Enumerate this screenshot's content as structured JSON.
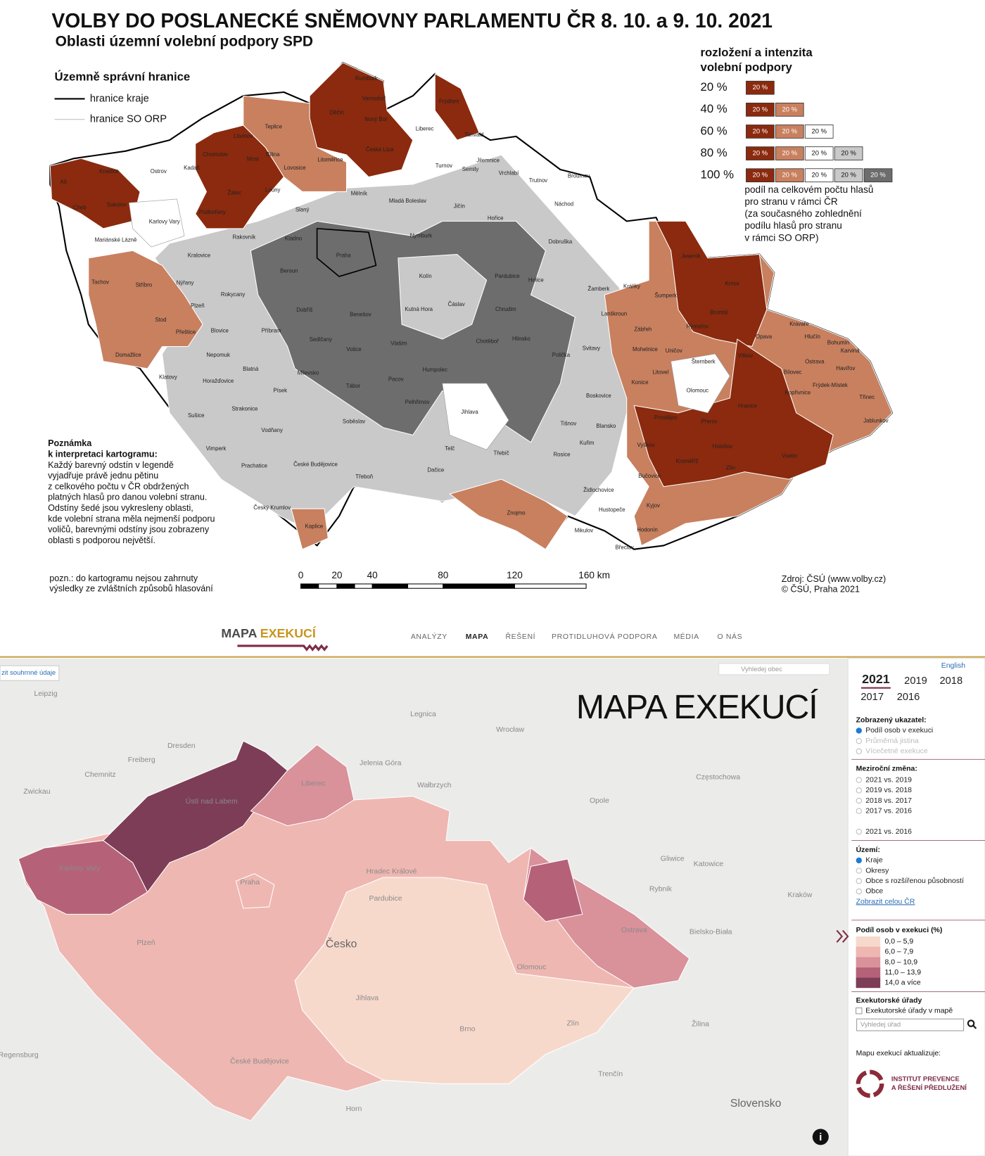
{
  "top": {
    "title": "VOLBY DO POSLANECKÉ SNĚMOVNY PARLAMENTU ČR 8. 10. a 9. 10. 2021",
    "subtitle": "Oblasti územní volební podpory SPD",
    "boundaries": {
      "title": "Územně správní hranice",
      "items": [
        "hranice kraje",
        "hranice SO ORP"
      ]
    },
    "legend": {
      "title_lines": [
        "rozložení a intenzita",
        "volební podpory"
      ],
      "rows": [
        "20 %",
        "40 %",
        "60 %",
        "80 %",
        "100 %"
      ],
      "cell": "20 %",
      "colors": [
        "#8b2a0e",
        "#c8805f",
        "#ffffff",
        "#c9c9c9",
        "#6d6d6d"
      ],
      "note_lines": [
        "podíl na celkovém počtu hlasů",
        "pro stranu v rámci ČR",
        "(za současného zohlednění",
        "podílu hlasů pro stranu",
        "v rámci SO ORP)"
      ]
    },
    "note_lines": [
      "Poznámka",
      "k interpretaci kartogramu:",
      "Každý barevný odstín v legendě",
      "vyjadřuje právě jednu pětinu",
      "z celkového počtu v ČR obdržených",
      "platných hlasů pro danou volební stranu.",
      "Odstíny šedé jsou vykresleny oblasti,",
      "kde volební strana měla nejmenší podporu",
      "voličů, barevnými odstíny jsou zobrazeny",
      "oblasti s podporou největší."
    ],
    "footnote_lines": [
      "pozn.: do kartogramu nejsou zahrnuty",
      "výsledky ze zvláštních způsobů hlasování"
    ],
    "scale_labels": [
      "0",
      "20",
      "40",
      "80",
      "120",
      "160 km"
    ],
    "source_lines": [
      "Zdroj: ČSÚ (www.volby.cz)",
      "© ČSÚ, Praha 2021"
    ],
    "places": [
      "Rumburk",
      "Varnsdorf",
      "Děčín",
      "Frýdlant",
      "Nový Bor",
      "Česká Lípa",
      "Liberec",
      "Tanvald",
      "Teplice",
      "Litvínov",
      "Bílina",
      "Most",
      "Chomutov",
      "Kadaň",
      "Žatec",
      "Louny",
      "Lovosice",
      "Litoměřice",
      "Kraslice",
      "Ostrov",
      "Aš",
      "Cheb",
      "Sokolov",
      "Karlovy Vary",
      "Podbořany",
      "Mariánské Lázně",
      "Rakovník",
      "Kladno",
      "Slaný",
      "Mělník",
      "Mladá Boleslav",
      "Semily",
      "Turnov",
      "Jilemnice",
      "Vrchlabí",
      "Trutnov",
      "Broumov",
      "Náchod",
      "Jičín",
      "Hořice",
      "Dobruška",
      "Praha",
      "Nymburk",
      "Kolín",
      "Kutná Hora",
      "Čáslav",
      "Chrudim",
      "Pardubice",
      "Holice",
      "Hlinsko",
      "Chotěboř",
      "Polička",
      "Svitavy",
      "Žamberk",
      "Králíky",
      "Lanškroun",
      "Šumperk",
      "Jeseník",
      "Krnov",
      "Bruntál",
      "Opava",
      "Kravaře",
      "Hlučín",
      "Bohumín",
      "Karviná",
      "Ostrava",
      "Havířov",
      "Bílovec",
      "Frýdek-Místek",
      "Třinec",
      "Jablunkov",
      "Kopřivnice",
      "Vítkov",
      "Rýmařov",
      "Zábřeh",
      "Mohelnice",
      "Uničov",
      "Litovel",
      "Šternberk",
      "Olomouc",
      "Konice",
      "Prostějov",
      "Přerov",
      "Hranice",
      "Vsetín",
      "Zlín",
      "Kroměříž",
      "Holešov",
      "Vyškov",
      "Bučovice",
      "Kyjov",
      "Hodonín",
      "Břeclav",
      "Mikulov",
      "Hustopeče",
      "Židlochovice",
      "Znojmo",
      "Blansko",
      "Boskovice",
      "Tišnov",
      "Kuřim",
      "Rosice",
      "Třebíč",
      "Jihlava",
      "Telč",
      "Dačice",
      "Pelhřimov",
      "Tábor",
      "Pacov",
      "Humpolec",
      "Vlašim",
      "Benešov",
      "Příbram",
      "Beroun",
      "Rokycany",
      "Plzeň",
      "Stříbro",
      "Tachov",
      "Nýřany",
      "Stod",
      "Přeštice",
      "Domažlice",
      "Klatovy",
      "Nepomuk",
      "Blovice",
      "Horažďovice",
      "Sušice",
      "Blatná",
      "Strakonice",
      "Písek",
      "Milevsko",
      "Vodňany",
      "Vimperk",
      "Prachatice",
      "České Budějovice",
      "Český Krumlov",
      "Kaplice",
      "Třeboň",
      "Soběslav",
      "Votice",
      "Sedlčany",
      "Dobříš",
      "Kralovice"
    ]
  },
  "bottom": {
    "logo": [
      "MAPA ",
      "EXEKUCÍ"
    ],
    "nav": [
      "ANALÝZY",
      "MAPA",
      "ŘEŠENÍ",
      "PROTIDLUHOVÁ PODPORA",
      "MÉDIA",
      "O NÁS"
    ],
    "summary_button": "zit souhrnné údaje",
    "search_placeholder": "Vyhledej obec",
    "map_title": "MAPA EXEKUCÍ",
    "places": [
      "Leipzig",
      "Dresden",
      "Chemnitz",
      "Zwickau",
      "Freiberg",
      "Legnica",
      "Wrocław",
      "Wałbrzych",
      "Jelenia Góra",
      "Opole",
      "Częstochowa",
      "Gliwice",
      "Katowice",
      "Rybnik",
      "Kraków",
      "Bielsko-Biała",
      "Žilina",
      "Trenčín",
      "Regensburg",
      "Horn",
      "Liberec",
      "Ústí nad Labem",
      "Karlovy Vary",
      "Praha",
      "Hradec Králové",
      "Pardubice",
      "Plzeň",
      "Česko",
      "Jihlava",
      "Olomouc",
      "Ostrava",
      "Brno",
      "Zlín",
      "České Budějovice",
      "Slovensko"
    ],
    "sidebar": {
      "language": "English",
      "years": [
        "2021",
        "2019",
        "2018",
        "2017",
        "2016"
      ],
      "indicator_title": "Zobrazený ukazatel:",
      "indicators": [
        "Podíl osob v exekuci",
        "Průměrná jistina",
        "Vícečetné exekuce"
      ],
      "change_title": "Meziroční změna:",
      "changes": [
        "2021 vs. 2019",
        "2019 vs. 2018",
        "2018 vs. 2017",
        "2017 vs. 2016",
        "2021 vs. 2016"
      ],
      "area_title": "Území:",
      "areas": [
        "Kraje",
        "Okresy",
        "Obce s rozšířenou působností",
        "Obce"
      ],
      "show_all": "Zobrazit celou ČR",
      "legend": {
        "title": "Podíl osob v exekuci (%)",
        "items": [
          {
            "label": "0,0 – 5,9",
            "color": "#f7d9cc"
          },
          {
            "label": "6,0 – 7,9",
            "color": "#efb7b2"
          },
          {
            "label": "8,0 – 10,9",
            "color": "#d9919a"
          },
          {
            "label": "11,0 – 13,9",
            "color": "#b56279"
          },
          {
            "label": "14,0 a více",
            "color": "#7d3d57"
          }
        ]
      },
      "offices_title": "Exekutorské úřady",
      "offices_checkbox": "Exekutorské úřady v mapě",
      "offices_placeholder": "Vyhledej úřad",
      "updated_by": "Mapu exekucí aktualizuje:",
      "institute": [
        "INSTITUT PREVENCE",
        "A ŘEŠENÍ PŘEDLUŽENÍ"
      ]
    }
  }
}
